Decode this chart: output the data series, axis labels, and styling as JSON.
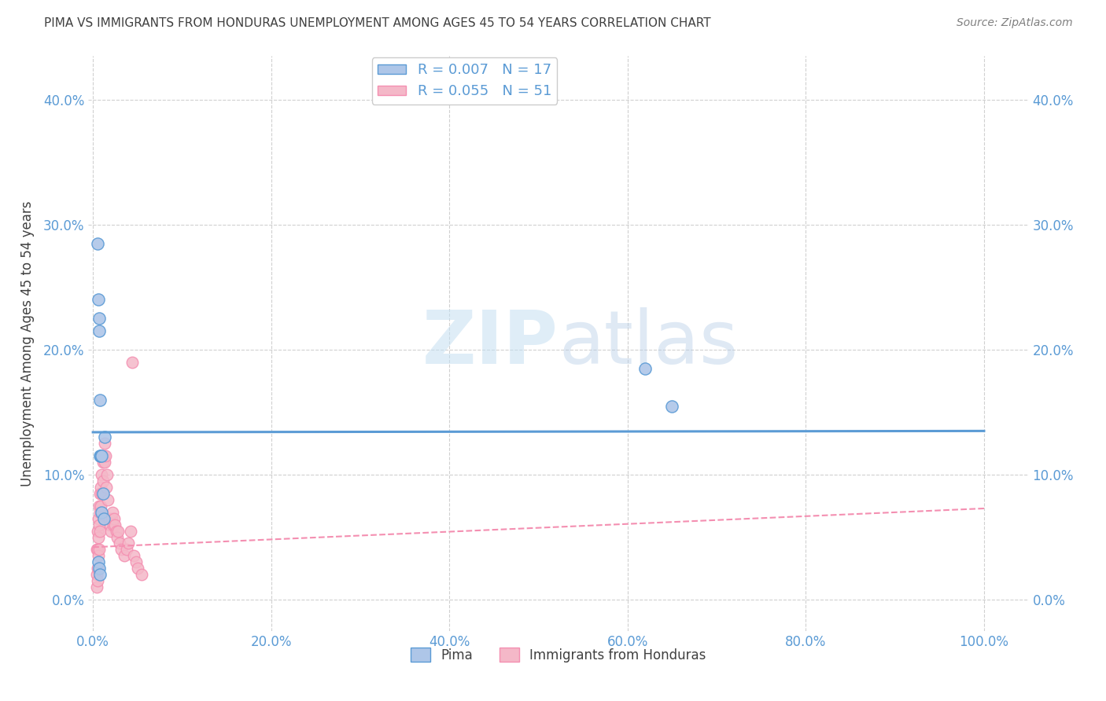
{
  "title": "PIMA VS IMMIGRANTS FROM HONDURAS UNEMPLOYMENT AMONG AGES 45 TO 54 YEARS CORRELATION CHART",
  "source": "Source: ZipAtlas.com",
  "ylabel": "Unemployment Among Ages 45 to 54 years",
  "xlim": [
    -0.005,
    1.05
  ],
  "ylim": [
    -0.025,
    0.435
  ],
  "legend_entries": [
    {
      "label": "R = 0.007   N = 17",
      "color": "#aec6e8"
    },
    {
      "label": "R = 0.055   N = 51",
      "color": "#f4b8c8"
    }
  ],
  "pima_scatter_x": [
    0.005,
    0.006,
    0.007,
    0.007,
    0.008,
    0.008,
    0.009,
    0.01,
    0.01,
    0.011,
    0.012,
    0.013,
    0.006,
    0.007,
    0.008,
    0.62,
    0.65
  ],
  "pima_scatter_y": [
    0.285,
    0.24,
    0.225,
    0.215,
    0.16,
    0.115,
    0.115,
    0.115,
    0.07,
    0.085,
    0.065,
    0.13,
    0.03,
    0.025,
    0.02,
    0.185,
    0.155
  ],
  "honduras_scatter_x": [
    0.004,
    0.004,
    0.004,
    0.005,
    0.005,
    0.005,
    0.005,
    0.006,
    0.006,
    0.006,
    0.007,
    0.007,
    0.007,
    0.008,
    0.008,
    0.008,
    0.009,
    0.009,
    0.01,
    0.01,
    0.011,
    0.011,
    0.012,
    0.013,
    0.013,
    0.014,
    0.015,
    0.016,
    0.017,
    0.018,
    0.019,
    0.02,
    0.021,
    0.022,
    0.023,
    0.024,
    0.025,
    0.026,
    0.027,
    0.028,
    0.03,
    0.032,
    0.035,
    0.038,
    0.04,
    0.042,
    0.044,
    0.046,
    0.048,
    0.05,
    0.055
  ],
  "honduras_scatter_y": [
    0.04,
    0.02,
    0.01,
    0.055,
    0.04,
    0.025,
    0.015,
    0.065,
    0.05,
    0.035,
    0.075,
    0.06,
    0.04,
    0.085,
    0.07,
    0.055,
    0.09,
    0.075,
    0.1,
    0.085,
    0.11,
    0.095,
    0.115,
    0.125,
    0.11,
    0.115,
    0.09,
    0.1,
    0.08,
    0.065,
    0.06,
    0.055,
    0.065,
    0.07,
    0.06,
    0.065,
    0.06,
    0.055,
    0.05,
    0.055,
    0.045,
    0.04,
    0.035,
    0.04,
    0.045,
    0.055,
    0.19,
    0.035,
    0.03,
    0.025,
    0.02
  ],
  "pima_trend_x": [
    0.0,
    1.0
  ],
  "pima_trend_y": [
    0.134,
    0.135
  ],
  "honduras_trend_x": [
    0.0,
    1.0
  ],
  "honduras_trend_y": [
    0.042,
    0.073
  ],
  "watermark_zip": "ZIP",
  "watermark_atlas": "atlas",
  "background_color": "#ffffff",
  "blue_color": "#5b9bd5",
  "blue_scatter_color": "#aec6e8",
  "pink_color": "#f48fb1",
  "pink_scatter_color": "#f4b8c8",
  "grid_color": "#d0d0d0",
  "title_color": "#404040",
  "source_color": "#808080",
  "axis_label_color": "#404040",
  "tick_color": "#5b9bd5",
  "legend_text_color": "#5b9bd5",
  "bottom_legend_color": "#404040"
}
